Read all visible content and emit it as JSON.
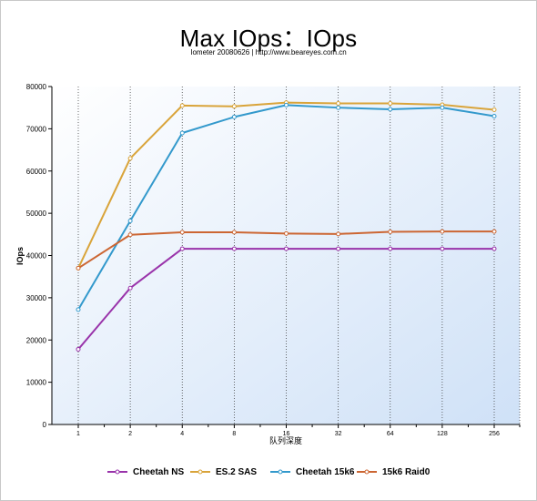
{
  "chart_data": {
    "type": "line",
    "title": "Max IOps：IOps",
    "subtitle": "Iometer 20080626 | http://www.beareyes.com.cn",
    "xlabel": "队列深度",
    "ylabel": "IOps",
    "categories": [
      "1",
      "2",
      "4",
      "8",
      "16",
      "32",
      "64",
      "128",
      "256"
    ],
    "ylim": [
      0,
      80000
    ],
    "yticks": [
      "0",
      "10000",
      "20000",
      "30000",
      "40000",
      "50000",
      "60000",
      "70000",
      "80000"
    ],
    "grid": "vertical dotted",
    "legend_position": "bottom",
    "series": [
      {
        "name": "Cheetah NS",
        "color": "#9933aa",
        "values": [
          17800,
          32300,
          41600,
          41600,
          41600,
          41600,
          41600,
          41600,
          41600
        ]
      },
      {
        "name": "ES.2 SAS",
        "color": "#d9a43a",
        "values": [
          37000,
          63000,
          75500,
          75300,
          76200,
          76000,
          76000,
          75700,
          74500
        ]
      },
      {
        "name": "Cheetah 15k6",
        "color": "#3399cc",
        "values": [
          27200,
          48200,
          69000,
          72800,
          75600,
          75000,
          74600,
          75000,
          73000
        ]
      },
      {
        "name": "15k6 Raid0",
        "color": "#cc6633",
        "values": [
          37000,
          44900,
          45500,
          45500,
          45200,
          45100,
          45600,
          45700,
          45700
        ]
      }
    ]
  }
}
